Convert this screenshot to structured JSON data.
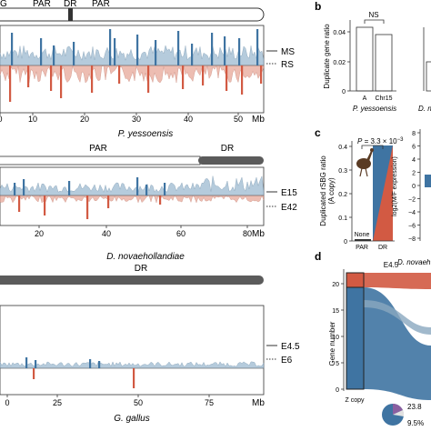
{
  "figure": {
    "panel_a": {
      "chrom_labels_top": {
        "g": "G",
        "par1": "PAR",
        "dr": "DR",
        "par2": "PAR"
      },
      "plot1": {
        "x_ticks": [
          "0",
          "10",
          "20",
          "30",
          "40",
          "50"
        ],
        "x_unit": "Mb",
        "species": "P. yessoensis",
        "legend": {
          "solid": "MS",
          "dotted": "RS"
        }
      },
      "chrom2": {
        "par": "PAR",
        "dr": "DR"
      },
      "plot2": {
        "x_ticks": [
          "20",
          "40",
          "60",
          "80"
        ],
        "x_unit": "Mb",
        "species": "D. novaehollandiae",
        "legend": {
          "solid": "E15",
          "dotted": "E42"
        }
      },
      "chrom3": {
        "dr": "DR"
      },
      "plot3": {
        "x_ticks": [
          "0",
          "25",
          "50",
          "75"
        ],
        "x_unit": "Mb",
        "species": "G. gallus",
        "legend": {
          "solid": "E4.5",
          "dotted": "E6"
        }
      }
    },
    "panel_b": {
      "letter": "b",
      "ylabel": "Duplicate gene ratio",
      "yticks": [
        "0",
        "0.02",
        "0.04"
      ],
      "sig": "NS",
      "species1": "P. yessoensis",
      "species2_partial": "D. n"
    },
    "panel_c": {
      "letter": "c",
      "pvalue": "P = 3.3 × 10",
      "pvalue_exp": "−3",
      "ylabel_line1": "Duplicated rSBG ratio",
      "ylabel_line2": "(A copy)",
      "yticks": [
        "0",
        "0.1",
        "0.2",
        "0.3",
        "0.4"
      ],
      "bar_label": "None",
      "x_categories": [
        "PAR",
        "DR"
      ],
      "right_ylabel": "log2(M/F expression)",
      "right_yticks": [
        "8",
        "6",
        "4",
        "2",
        "0",
        "−2",
        "−4",
        "−6",
        "−8"
      ],
      "species": "D. novaeh"
    },
    "panel_d": {
      "letter": "d",
      "title": "E4.5",
      "ylabel": "Gene number",
      "yticks": [
        "0",
        "5",
        "10",
        "15",
        "20"
      ],
      "xlabel": "Z copy",
      "pie_labels": [
        "23.8",
        "9.5%"
      ]
    },
    "colors": {
      "blue": "#3f74a2",
      "red": "#d25a43",
      "light_blue": "#a9c3d6",
      "light_red": "#eab2a5",
      "dark_gray": "#5b5b5b"
    }
  }
}
